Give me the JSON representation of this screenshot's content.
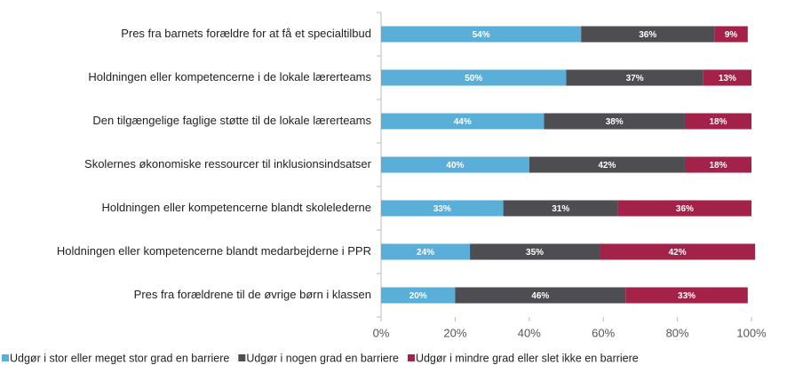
{
  "chart_data": {
    "type": "stacked_barh",
    "categories": [
      "Pres fra barnets forældre for at få et specialtilbud",
      "Holdningen eller kompetencerne i de lokale lærerteams",
      "Den tilgængelige faglige støtte til de lokale lærerteams",
      "Skolernes økonomiske ressourcer til inklusionsindsatser",
      "Holdningen eller kompetencerne blandt skolelederne",
      "Holdningen eller kompetencerne blandt medarbejderne i PPR",
      "Pres fra forældrene til de øvrige børn i klassen"
    ],
    "series": [
      {
        "name": "Udgør i stor eller meget stor grad en barriere",
        "color": "#5aafd8",
        "values": [
          54,
          50,
          44,
          40,
          33,
          24,
          20
        ],
        "value_labels": [
          "54%",
          "50%",
          "44%",
          "40%",
          "33%",
          "24%",
          "20%"
        ]
      },
      {
        "name": "Udgør i nogen grad en barriere",
        "color": "#4d4d52",
        "values": [
          36,
          37,
          38,
          42,
          31,
          35,
          46
        ],
        "value_labels": [
          "36%",
          "37%",
          "38%",
          "42%",
          "31%",
          "35%",
          "46%"
        ]
      },
      {
        "name": "Udgør i mindre grad eller slet ikke en barriere",
        "color": "#a3224a",
        "values": [
          9,
          13,
          18,
          18,
          36,
          42,
          33
        ],
        "value_labels": [
          "9%",
          "13%",
          "18%",
          "18%",
          "36%",
          "42%",
          "33%"
        ]
      }
    ],
    "xlim": [
      0,
      100
    ],
    "xticks": [
      {
        "value": 0,
        "label": "0%"
      },
      {
        "value": 20,
        "label": "20%"
      },
      {
        "value": 40,
        "label": "40%"
      },
      {
        "value": 60,
        "label": "60%"
      },
      {
        "value": 80,
        "label": "80%"
      },
      {
        "value": 100,
        "label": "100%"
      }
    ],
    "legend": "bottom"
  }
}
